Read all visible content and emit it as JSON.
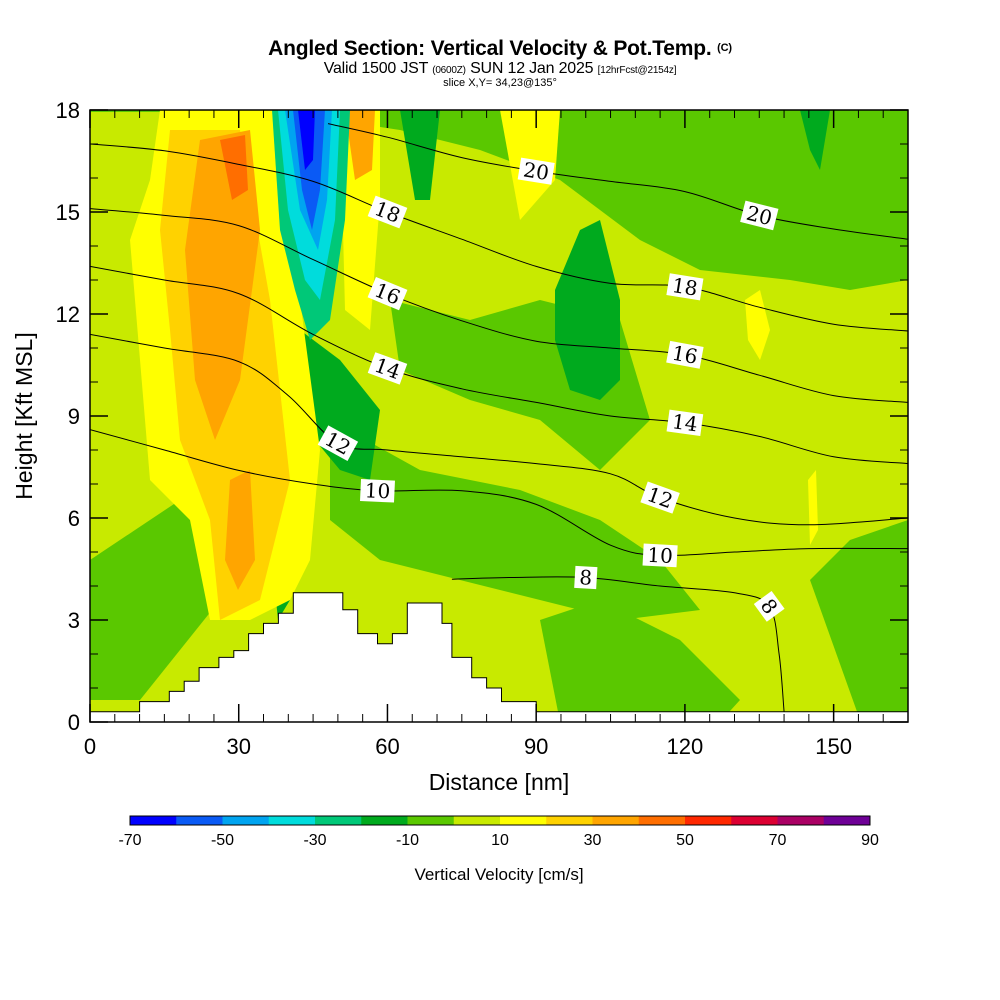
{
  "chart_data": {
    "type": "heatmap",
    "title": "Angled Section: Vertical Velocity & Pot.Temp.",
    "title_suffix": "(C)",
    "subtitle_main_a": "Valid 1500 JST",
    "subtitle_small_a": "(0600Z)",
    "subtitle_main_b": "SUN 12 Jan 2025",
    "subtitle_small_b": "[12hrFcst@2154z]",
    "subtitle_slice": "slice X,Y= 34,23@135°",
    "xlabel": "Distance [nm]",
    "ylabel": "Height [Kft MSL]",
    "xlim": [
      0,
      165
    ],
    "ylim": [
      0,
      18
    ],
    "x_ticks": [
      0,
      30,
      60,
      90,
      120,
      150
    ],
    "y_ticks": [
      0,
      3,
      6,
      9,
      12,
      15,
      18
    ],
    "x_tick_labels": [
      "0",
      "30",
      "60",
      "90",
      "120",
      "150"
    ],
    "y_tick_labels": [
      "0",
      "3",
      "6",
      "9",
      "12",
      "15",
      "18"
    ],
    "colorbar": {
      "title": "Vertical Velocity [cm/s]",
      "min": -70,
      "max": 90,
      "step": 10,
      "tick_labels": [
        "-70",
        "-50",
        "-30",
        "-10",
        "10",
        "30",
        "50",
        "70",
        "90"
      ],
      "colors": [
        "#0000ff",
        "#0a5af5",
        "#00a4f0",
        "#00dcdc",
        "#00c878",
        "#00aa1e",
        "#5ac800",
        "#c8ea00",
        "#ffff00",
        "#ffd200",
        "#ffa500",
        "#ff6e00",
        "#ff2800",
        "#dc0032",
        "#aa0064",
        "#6e0096"
      ]
    },
    "theta_contours": [
      {
        "label": "8",
        "points": [
          [
            73,
            4.2
          ],
          [
            85,
            4.25
          ],
          [
            100,
            4.25
          ],
          [
            115,
            4.0
          ],
          [
            130,
            3.8
          ],
          [
            137,
            3.4
          ],
          [
            139,
            2.0
          ],
          [
            140,
            0.3
          ]
        ]
      },
      {
        "label": "10",
        "points": [
          [
            0,
            8.6
          ],
          [
            15,
            8.0
          ],
          [
            30,
            7.4
          ],
          [
            45,
            7.0
          ],
          [
            58,
            6.8
          ],
          [
            75,
            6.8
          ],
          [
            90,
            6.4
          ],
          [
            105,
            5.2
          ],
          [
            115,
            4.9
          ],
          [
            130,
            5.0
          ],
          [
            145,
            5.1
          ],
          [
            165,
            5.1
          ]
        ]
      },
      {
        "label": "12",
        "points": [
          [
            0,
            11.4
          ],
          [
            15,
            11.0
          ],
          [
            30,
            10.6
          ],
          [
            40,
            9.6
          ],
          [
            50,
            8.2
          ],
          [
            60,
            8.0
          ],
          [
            75,
            7.8
          ],
          [
            90,
            7.6
          ],
          [
            105,
            7.3
          ],
          [
            115,
            6.6
          ],
          [
            130,
            6.0
          ],
          [
            145,
            5.8
          ],
          [
            165,
            6.0
          ]
        ]
      },
      {
        "label": "14",
        "points": [
          [
            0,
            13.4
          ],
          [
            15,
            13.0
          ],
          [
            30,
            12.6
          ],
          [
            45,
            11.4
          ],
          [
            60,
            10.4
          ],
          [
            75,
            9.8
          ],
          [
            90,
            9.4
          ],
          [
            105,
            9.0
          ],
          [
            120,
            8.8
          ],
          [
            135,
            8.4
          ],
          [
            150,
            7.8
          ],
          [
            165,
            7.6
          ]
        ]
      },
      {
        "label": "16",
        "points": [
          [
            0,
            15.1
          ],
          [
            15,
            14.9
          ],
          [
            30,
            14.6
          ],
          [
            45,
            13.6
          ],
          [
            60,
            12.6
          ],
          [
            75,
            11.8
          ],
          [
            90,
            11.2
          ],
          [
            105,
            11.0
          ],
          [
            120,
            10.8
          ],
          [
            135,
            10.2
          ],
          [
            150,
            9.6
          ],
          [
            165,
            9.4
          ]
        ]
      },
      {
        "label": "18",
        "points": [
          [
            0,
            17.0
          ],
          [
            15,
            16.8
          ],
          [
            30,
            16.4
          ],
          [
            45,
            15.9
          ],
          [
            60,
            15.0
          ],
          [
            75,
            14.2
          ],
          [
            90,
            13.4
          ],
          [
            105,
            12.9
          ],
          [
            120,
            12.8
          ],
          [
            135,
            12.2
          ],
          [
            150,
            11.7
          ],
          [
            165,
            11.5
          ]
        ]
      },
      {
        "label": "20",
        "points": [
          [
            48,
            17.6
          ],
          [
            60,
            17.2
          ],
          [
            75,
            16.6
          ],
          [
            90,
            16.2
          ],
          [
            105,
            15.9
          ],
          [
            120,
            15.6
          ],
          [
            135,
            14.9
          ],
          [
            150,
            14.5
          ],
          [
            165,
            14.2
          ]
        ]
      }
    ],
    "terrain_steps": [
      [
        0,
        0.3
      ],
      [
        10,
        0.3
      ],
      [
        10,
        0.6
      ],
      [
        16,
        0.6
      ],
      [
        16,
        0.9
      ],
      [
        19,
        0.9
      ],
      [
        19,
        1.2
      ],
      [
        22,
        1.2
      ],
      [
        22,
        1.6
      ],
      [
        26,
        1.6
      ],
      [
        26,
        1.9
      ],
      [
        29,
        1.9
      ],
      [
        29,
        2.1
      ],
      [
        32,
        2.1
      ],
      [
        32,
        2.6
      ],
      [
        35,
        2.6
      ],
      [
        35,
        2.9
      ],
      [
        38,
        2.9
      ],
      [
        38,
        3.2
      ],
      [
        41,
        3.2
      ],
      [
        41,
        3.8
      ],
      [
        51,
        3.8
      ],
      [
        51,
        3.3
      ],
      [
        54,
        3.3
      ],
      [
        54,
        2.6
      ],
      [
        58,
        2.6
      ],
      [
        58,
        2.3
      ],
      [
        61,
        2.3
      ],
      [
        61,
        2.6
      ],
      [
        64,
        2.6
      ],
      [
        64,
        3.5
      ],
      [
        71,
        3.5
      ],
      [
        71,
        2.9
      ],
      [
        73,
        2.9
      ],
      [
        73,
        1.9
      ],
      [
        77,
        1.9
      ],
      [
        77,
        1.3
      ],
      [
        80,
        1.3
      ],
      [
        80,
        1.0
      ],
      [
        83,
        1.0
      ],
      [
        83,
        0.6
      ],
      [
        90,
        0.6
      ],
      [
        90,
        0.3
      ],
      [
        165,
        0.3
      ]
    ]
  }
}
